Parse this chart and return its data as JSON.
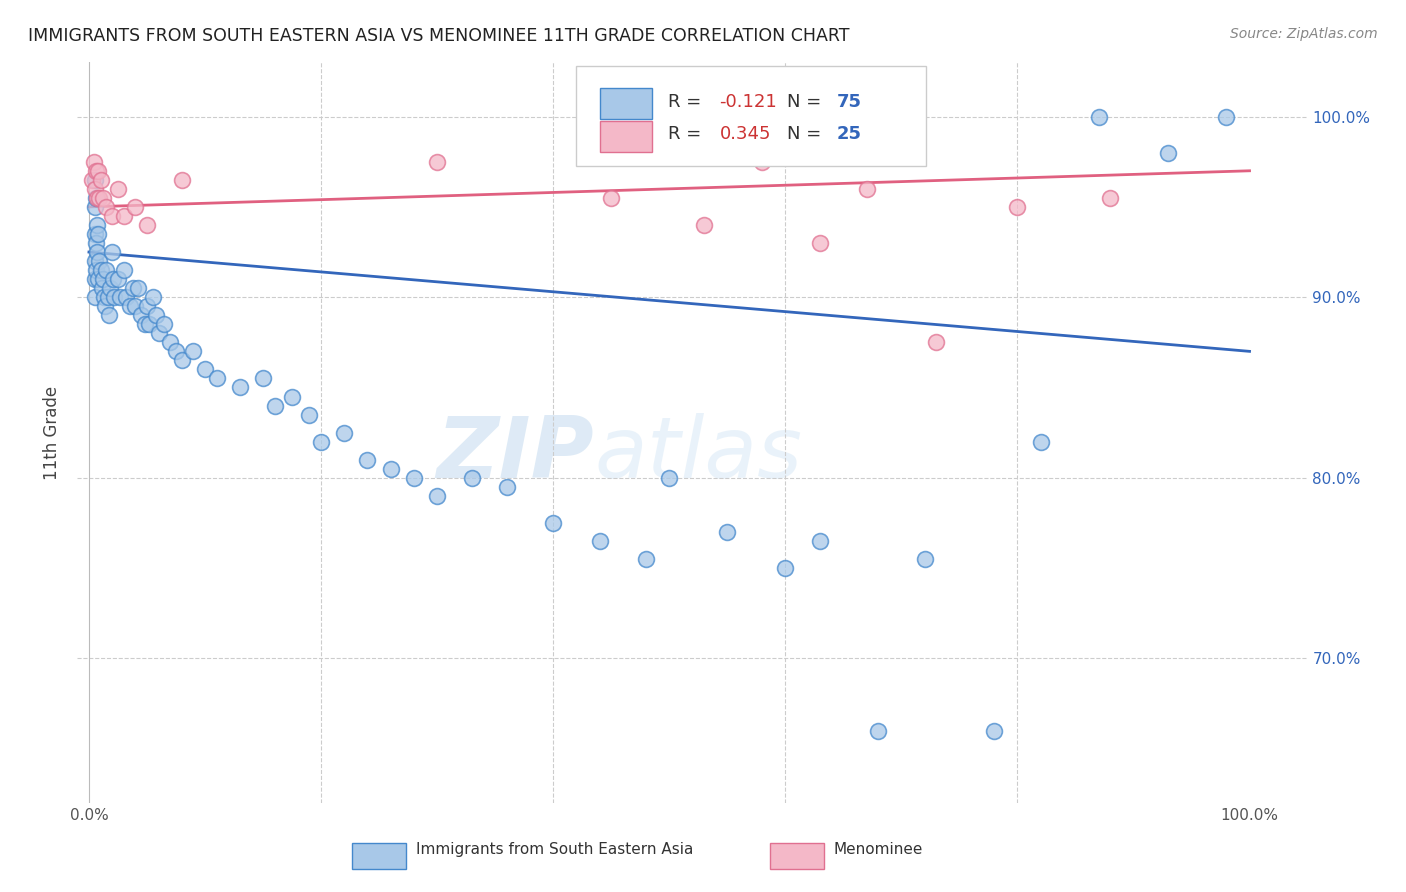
{
  "title": "IMMIGRANTS FROM SOUTH EASTERN ASIA VS MENOMINEE 11TH GRADE CORRELATION CHART",
  "source": "Source: ZipAtlas.com",
  "ylabel": "11th Grade",
  "yticks": [
    {
      "label": "100.0%",
      "value": 1.0
    },
    {
      "label": "90.0%",
      "value": 0.9
    },
    {
      "label": "80.0%",
      "value": 0.8
    },
    {
      "label": "70.0%",
      "value": 0.7
    }
  ],
  "watermark_zip": "ZIP",
  "watermark_atlas": "atlas",
  "legend_blue_r": "-0.121",
  "legend_blue_n": "75",
  "legend_pink_r": "0.345",
  "legend_pink_n": "25",
  "blue_color": "#a8c8e8",
  "pink_color": "#f4b8c8",
  "blue_edge_color": "#4488cc",
  "pink_edge_color": "#e07090",
  "blue_line_color": "#3366bb",
  "pink_line_color": "#e06080",
  "blue_scatter_x": [
    0.5,
    0.5,
    0.5,
    0.5,
    0.5,
    0.5,
    0.6,
    0.6,
    0.6,
    0.7,
    0.7,
    0.8,
    0.8,
    0.9,
    1.0,
    1.1,
    1.2,
    1.3,
    1.4,
    1.5,
    1.6,
    1.7,
    1.8,
    2.0,
    2.1,
    2.2,
    2.5,
    2.7,
    3.0,
    3.2,
    3.5,
    3.8,
    4.0,
    4.2,
    4.5,
    4.8,
    5.0,
    5.2,
    5.5,
    5.8,
    6.0,
    6.5,
    7.0,
    7.5,
    8.0,
    9.0,
    10.0,
    11.0,
    13.0,
    15.0,
    16.0,
    17.5,
    19.0,
    20.0,
    22.0,
    24.0,
    26.0,
    28.0,
    30.0,
    33.0,
    36.0,
    40.0,
    44.0,
    48.0,
    50.0,
    55.0,
    60.0,
    63.0,
    68.0,
    72.0,
    78.0,
    82.0,
    87.0,
    93.0,
    98.0
  ],
  "blue_scatter_y": [
    96.5,
    95.0,
    93.5,
    92.0,
    91.0,
    90.0,
    95.5,
    93.0,
    91.5,
    94.0,
    92.5,
    93.5,
    91.0,
    92.0,
    91.5,
    90.5,
    91.0,
    90.0,
    89.5,
    91.5,
    90.0,
    89.0,
    90.5,
    92.5,
    91.0,
    90.0,
    91.0,
    90.0,
    91.5,
    90.0,
    89.5,
    90.5,
    89.5,
    90.5,
    89.0,
    88.5,
    89.5,
    88.5,
    90.0,
    89.0,
    88.0,
    88.5,
    87.5,
    87.0,
    86.5,
    87.0,
    86.0,
    85.5,
    85.0,
    85.5,
    84.0,
    84.5,
    83.5,
    82.0,
    82.5,
    81.0,
    80.5,
    80.0,
    79.0,
    80.0,
    79.5,
    77.5,
    76.5,
    75.5,
    80.0,
    77.0,
    75.0,
    76.5,
    66.0,
    75.5,
    66.0,
    82.0,
    100.0,
    98.0,
    100.0
  ],
  "pink_scatter_x": [
    0.3,
    0.4,
    0.5,
    0.6,
    0.7,
    0.8,
    0.9,
    1.0,
    1.2,
    1.5,
    2.0,
    2.5,
    3.0,
    4.0,
    5.0,
    8.0,
    30.0,
    45.0,
    53.0,
    58.0,
    63.0,
    67.0,
    73.0,
    80.0,
    88.0
  ],
  "pink_scatter_y": [
    96.5,
    97.5,
    96.0,
    97.0,
    95.5,
    97.0,
    95.5,
    96.5,
    95.5,
    95.0,
    94.5,
    96.0,
    94.5,
    95.0,
    94.0,
    96.5,
    97.5,
    95.5,
    94.0,
    97.5,
    93.0,
    96.0,
    87.5,
    95.0,
    95.5
  ],
  "blue_line_x": [
    0.0,
    100.0
  ],
  "blue_line_y": [
    92.5,
    87.0
  ],
  "pink_line_x": [
    0.0,
    100.0
  ],
  "pink_line_y": [
    95.0,
    97.0
  ],
  "xlim": [
    -1,
    105
  ],
  "ylim": [
    62.0,
    103.0
  ],
  "xtick_positions": [
    0,
    20,
    40,
    60,
    80,
    100
  ],
  "xtick_labels": [
    "0.0%",
    "",
    "",
    "",
    "",
    "100.0%"
  ]
}
